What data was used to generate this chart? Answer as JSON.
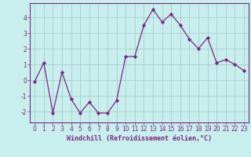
{
  "x": [
    0,
    1,
    2,
    3,
    4,
    5,
    6,
    7,
    8,
    9,
    10,
    11,
    12,
    13,
    14,
    15,
    16,
    17,
    18,
    19,
    20,
    21,
    22,
    23
  ],
  "y": [
    -0.1,
    1.1,
    -2.1,
    0.5,
    -1.2,
    -2.1,
    -1.4,
    -2.1,
    -2.1,
    -1.3,
    1.5,
    1.5,
    3.5,
    4.5,
    3.7,
    4.2,
    3.5,
    2.6,
    2.0,
    2.7,
    1.1,
    1.3,
    1.0,
    0.6
  ],
  "line_color": "#7b2882",
  "marker": "D",
  "marker_size": 2.2,
  "bg_color": "#c8eeee",
  "grid_color": "#aacccc",
  "xlabel": "Windchill (Refroidissement éolien,°C)",
  "ylabel": "",
  "xlim": [
    -0.5,
    23.5
  ],
  "ylim": [
    -2.7,
    4.9
  ],
  "yticks": [
    -2,
    -1,
    0,
    1,
    2,
    3,
    4
  ],
  "xticks": [
    0,
    1,
    2,
    3,
    4,
    5,
    6,
    7,
    8,
    9,
    10,
    11,
    12,
    13,
    14,
    15,
    16,
    17,
    18,
    19,
    20,
    21,
    22,
    23
  ],
  "tick_label_fontsize": 5.5,
  "xlabel_fontsize": 6.0
}
